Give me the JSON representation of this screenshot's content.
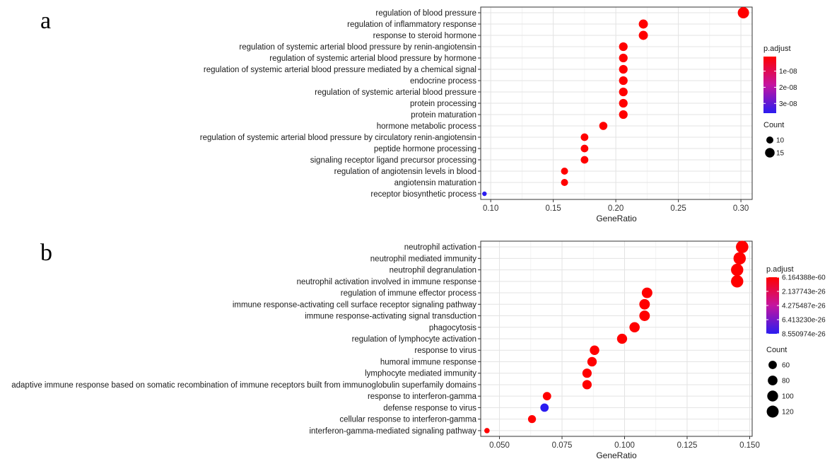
{
  "chart_data": [
    {
      "panel_label": "a",
      "type": "scatter",
      "subtype": "dotplot",
      "xlabel": "GeneRatio",
      "ylabel": "",
      "xlim": [
        0.092,
        0.309
      ],
      "x_ticks": [
        0.1,
        0.15,
        0.2,
        0.25,
        0.3
      ],
      "x_tick_labels": [
        "0.10",
        "0.15",
        "0.20",
        "0.25",
        "0.30"
      ],
      "grid": true,
      "color_legend": {
        "title": "p.adjust",
        "min": 1e-09,
        "max": 3.6e-08,
        "tick_values": [
          1e-08,
          2e-08,
          3e-08
        ],
        "tick_labels": [
          "1e-08",
          "2e-08",
          "3e-08"
        ],
        "low_color": "#ff0000",
        "high_color": "#2b1cf0"
      },
      "size_legend": {
        "title": "Count",
        "values": [
          10,
          15
        ],
        "labels": [
          "10",
          "15"
        ],
        "min_count": 6,
        "max_count": 19
      },
      "terms": [
        "regulation of blood pressure",
        "regulation of inflammatory response",
        "response to steroid hormone",
        "regulation of systemic arterial blood pressure by renin-angiotensin",
        "regulation of systemic arterial blood pressure by hormone",
        "regulation of systemic arterial blood pressure mediated by a chemical signal",
        "endocrine process",
        "regulation of systemic arterial blood pressure",
        "protein processing",
        "protein maturation",
        "hormone metabolic process",
        "regulation of systemic arterial blood pressure by circulatory renin-angiotensin",
        "peptide hormone processing",
        "signaling receptor ligand precursor processing",
        "regulation of angiotensin levels in blood",
        "angiotensin maturation",
        "receptor biosynthetic process"
      ],
      "gene_ratio": [
        0.302,
        0.222,
        0.222,
        0.206,
        0.206,
        0.206,
        0.206,
        0.206,
        0.206,
        0.206,
        0.19,
        0.175,
        0.175,
        0.175,
        0.159,
        0.159,
        0.095
      ],
      "count": [
        19,
        14,
        14,
        13,
        13,
        13,
        13,
        13,
        13,
        13,
        12,
        11,
        11,
        11,
        10,
        10,
        6
      ],
      "p_adjust": [
        1e-09,
        1e-09,
        1e-09,
        1e-09,
        1e-09,
        1e-09,
        1e-09,
        1e-09,
        1e-09,
        1e-09,
        1e-09,
        1e-09,
        1e-09,
        1e-09,
        1e-09,
        1e-09,
        3.6e-08
      ]
    },
    {
      "panel_label": "b",
      "type": "scatter",
      "subtype": "dotplot",
      "xlabel": "GeneRatio",
      "ylabel": "",
      "xlim": [
        0.0425,
        0.151
      ],
      "x_ticks": [
        0.05,
        0.075,
        0.1,
        0.125,
        0.15
      ],
      "x_tick_labels": [
        "0.050",
        "0.075",
        "0.100",
        "0.125",
        "0.150"
      ],
      "grid": true,
      "color_legend": {
        "title": "p.adjust",
        "min": 6.164388e-60,
        "max": 8.550974e-26,
        "tick_values": [
          6.164388e-60,
          2.137743e-26,
          4.275487e-26,
          6.41323e-26,
          8.550974e-26
        ],
        "tick_labels": [
          "6.164388e-60",
          "2.137743e-26",
          "4.275487e-26",
          "6.413230e-26",
          "8.550974e-26"
        ],
        "low_color": "#ff0000",
        "high_color": "#2b1cf0"
      },
      "size_legend": {
        "title": "Count",
        "values": [
          60,
          80,
          100,
          120
        ],
        "labels": [
          "60",
          "80",
          "100",
          "120"
        ],
        "min_count": 26,
        "max_count": 130
      },
      "terms": [
        "neutrophil activation",
        "neutrophil mediated immunity",
        "neutrophil degranulation",
        "neutrophil activation involved in immune response",
        "regulation of immune effector process",
        "immune response-activating cell surface receptor signaling pathway",
        "immune response-activating signal transduction",
        "phagocytosis",
        "regulation of lymphocyte activation",
        "response to virus",
        "humoral immune response",
        "lymphocyte mediated immunity",
        "adaptive immune response based on somatic recombination of immune receptors built from immunoglobulin superfamily domains",
        "response to interferon-gamma",
        "defense response to virus",
        "cellular response to interferon-gamma",
        "interferon-gamma-mediated signaling pathway"
      ],
      "gene_ratio": [
        0.147,
        0.146,
        0.145,
        0.145,
        0.109,
        0.108,
        0.108,
        0.104,
        0.099,
        0.088,
        0.087,
        0.085,
        0.085,
        0.069,
        0.068,
        0.063,
        0.045
      ],
      "count": [
        130,
        128,
        127,
        127,
        95,
        94,
        94,
        90,
        87,
        77,
        76,
        74,
        74,
        60,
        60,
        55,
        26
      ],
      "p_adjust": [
        6.164388e-60,
        6.164388e-60,
        6.164388e-60,
        6.164388e-60,
        1e-35,
        1e-35,
        1e-35,
        1e-35,
        1e-35,
        1e-35,
        1e-35,
        1e-35,
        1e-35,
        1e-35,
        8.550974e-26,
        1e-35,
        1e-35
      ]
    }
  ]
}
